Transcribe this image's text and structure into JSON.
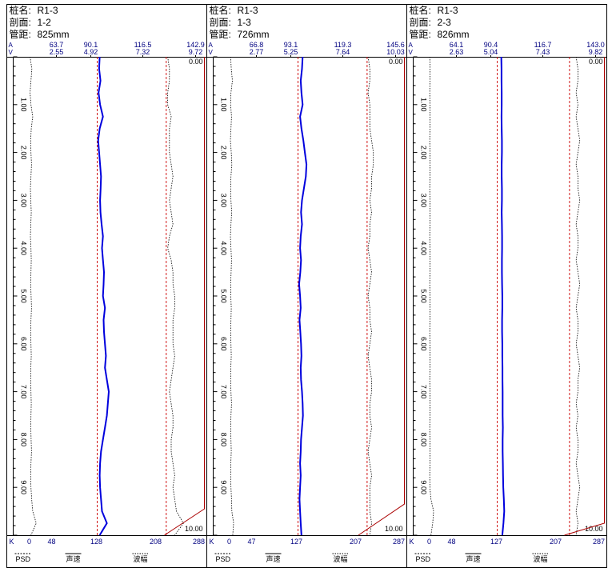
{
  "labels": {
    "pile": "桩名:",
    "section": "剖面:",
    "distance": "管距:",
    "amp_axis": "A",
    "vel_axis": "V",
    "k_axis": "K",
    "legend_psd": "PSD",
    "legend_velocity": "声速",
    "legend_amplitude": "波幅"
  },
  "colors": {
    "velocity": "#0000dd",
    "threshold": "#cc0000",
    "psd": "#aa0000",
    "amplitude": "#000000",
    "text": "#000000",
    "scale_text": "#000080"
  },
  "chart_data": [
    {
      "type": "line",
      "pile": "R1-3",
      "section": "1-2",
      "distance": "825mm",
      "amp_ticks": [
        "63.7",
        "90.1",
        "116.5",
        "142.9"
      ],
      "vel_ticks": [
        "2.55",
        "4.92",
        "7.32",
        "9.72"
      ],
      "k_ticks": [
        "0",
        "48",
        "128",
        "208",
        "288"
      ],
      "depth_ticks": [
        "1.00",
        "2.00",
        "3.00",
        "4.00",
        "5.00",
        "6.00",
        "7.00",
        "8.00",
        "9.00"
      ],
      "depth_top_label": "0.00",
      "depth_bottom_label": "10.00",
      "ylim": [
        0,
        10
      ],
      "velocity_threshold": 4.65,
      "amplitude_threshold": 126.2,
      "depth": [
        0,
        0.25,
        0.5,
        0.75,
        1,
        1.25,
        1.5,
        1.75,
        2,
        2.25,
        2.5,
        2.75,
        3,
        3.25,
        3.5,
        3.75,
        4,
        4.25,
        4.5,
        4.75,
        5,
        5.25,
        5.5,
        5.75,
        6,
        6.25,
        6.5,
        6.75,
        7,
        7.25,
        7.5,
        7.75,
        8,
        8.25,
        8.5,
        8.75,
        9,
        9.25,
        9.5,
        9.75,
        10
      ],
      "velocity": [
        4.78,
        4.75,
        4.82,
        4.72,
        4.8,
        4.95,
        4.78,
        4.7,
        4.75,
        4.8,
        4.85,
        4.83,
        4.8,
        4.82,
        4.88,
        4.95,
        4.9,
        4.95,
        5.0,
        4.98,
        4.95,
        5.05,
        4.98,
        5.0,
        5.05,
        5.1,
        5.05,
        5.15,
        5.25,
        5.2,
        5.15,
        5.05,
        4.95,
        4.85,
        4.8,
        4.78,
        4.8,
        4.85,
        4.9,
        5.15,
        4.78
      ],
      "amplitude": [
        127,
        128,
        128,
        127,
        127,
        129,
        128,
        128,
        128,
        129,
        130,
        129,
        128,
        129,
        130,
        128,
        127,
        129,
        130,
        130,
        131,
        131,
        130,
        130,
        130,
        131,
        130,
        129,
        128,
        129,
        130,
        130,
        129,
        129,
        130,
        131,
        130,
        131,
        132,
        136,
        131
      ],
      "psd_depth": [
        0,
        9.45,
        10
      ],
      "psd": [
        0,
        0,
        2.0
      ],
      "left_trace": [
        0.5,
        1.5,
        1.0,
        0.5,
        1.0,
        2.0,
        1.2,
        0.8,
        1.0,
        1.3,
        1.0,
        0.7,
        0.9,
        1.2,
        0.9,
        0.7,
        1.0,
        1.2,
        1.0,
        0.8,
        1.1,
        1.3,
        1.0,
        0.8,
        1.0,
        1.2,
        0.9,
        0.8,
        1.0,
        1.2,
        1.0,
        0.9,
        1.1,
        1.3,
        1.0,
        0.8,
        1.0,
        1.4,
        2.0,
        4.0,
        1.0
      ]
    },
    {
      "type": "line",
      "pile": "R1-3",
      "section": "1-3",
      "distance": "726mm",
      "amp_ticks": [
        "66.8",
        "93.1",
        "119.3",
        "145.6"
      ],
      "vel_ticks": [
        "2.77",
        "5.25",
        "7.64",
        "10.03"
      ],
      "k_ticks": [
        "0",
        "47",
        "127",
        "207",
        "287"
      ],
      "depth_ticks": [
        "1.00",
        "2.00",
        "3.00",
        "4.00",
        "5.00",
        "6.00",
        "7.00",
        "8.00",
        "9.00"
      ],
      "depth_top_label": "0.00",
      "depth_bottom_label": "10.00",
      "ylim": [
        0,
        10
      ],
      "velocity_threshold": 4.94,
      "amplitude_threshold": 129.5,
      "depth": [
        0,
        0.25,
        0.5,
        0.75,
        1,
        1.25,
        1.5,
        1.75,
        2,
        2.25,
        2.5,
        2.75,
        3,
        3.25,
        3.5,
        3.75,
        4,
        4.25,
        4.5,
        4.75,
        5,
        5.25,
        5.5,
        5.75,
        6,
        6.25,
        6.5,
        6.75,
        7,
        7.25,
        7.5,
        7.75,
        8,
        8.25,
        8.5,
        8.75,
        9,
        9.25,
        9.5,
        9.75,
        10
      ],
      "velocity": [
        5.18,
        5.15,
        5.08,
        5.12,
        5.18,
        5.05,
        5.12,
        5.22,
        5.3,
        5.38,
        5.35,
        5.25,
        5.15,
        5.1,
        5.15,
        5.08,
        5.05,
        5.1,
        5.06,
        5.0,
        5.05,
        5.08,
        5.02,
        5.06,
        5.1,
        5.12,
        5.08,
        5.1,
        5.15,
        5.18,
        5.2,
        5.15,
        5.1,
        5.08,
        5.05,
        5.08,
        5.05,
        5.02,
        5.05,
        5.08,
        5.12
      ],
      "amplitude": [
        130,
        131,
        131,
        130,
        131,
        131,
        131,
        132,
        133,
        133,
        132,
        132,
        131,
        132,
        131,
        131,
        130,
        131,
        132,
        131,
        130,
        131,
        131,
        132,
        131,
        130,
        131,
        132,
        132,
        131,
        131,
        132,
        131,
        130,
        131,
        132,
        131,
        131,
        131,
        132,
        131
      ],
      "psd_depth": [
        0,
        9.35,
        10
      ],
      "psd": [
        0,
        0,
        2.3
      ],
      "left_trace": [
        0.8,
        1.2,
        1.8,
        1.0,
        0.8,
        1.3,
        1.0,
        0.7,
        1.2,
        1.5,
        1.0,
        0.8,
        1.0,
        1.4,
        1.0,
        0.7,
        1.0,
        1.3,
        1.1,
        0.8,
        0.9,
        1.2,
        1.0,
        0.8,
        1.0,
        1.2,
        0.9,
        0.8,
        1.0,
        1.3,
        1.0,
        0.8,
        1.0,
        1.2,
        0.9,
        0.8,
        1.0,
        1.3,
        1.5,
        2.5,
        2.0
      ]
    },
    {
      "type": "line",
      "pile": "R1-3",
      "section": "2-3",
      "distance": "826mm",
      "amp_ticks": [
        "64.1",
        "90.4",
        "116.7",
        "143.0"
      ],
      "vel_ticks": [
        "2.63",
        "5.04",
        "7.43",
        "9.82"
      ],
      "k_ticks": [
        "0",
        "48",
        "127",
        "207",
        "287"
      ],
      "depth_ticks": [
        "1.00",
        "2.00",
        "3.00",
        "4.00",
        "5.00",
        "6.00",
        "7.00",
        "8.00",
        "9.00"
      ],
      "depth_top_label": "0.00",
      "depth_bottom_label": "10.00",
      "ylim": [
        0,
        10
      ],
      "velocity_threshold": 4.74,
      "amplitude_threshold": 128.2,
      "depth": [
        0,
        0.25,
        0.5,
        0.75,
        1,
        1.25,
        1.5,
        1.75,
        2,
        2.25,
        2.5,
        2.75,
        3,
        3.25,
        3.5,
        3.75,
        4,
        4.25,
        4.5,
        4.75,
        5,
        5.25,
        5.5,
        5.75,
        6,
        6.25,
        6.5,
        6.75,
        7,
        7.25,
        7.5,
        7.75,
        8,
        8.25,
        8.5,
        8.75,
        9,
        9.25,
        9.5,
        9.75,
        10
      ],
      "velocity": [
        4.95,
        4.96,
        4.96,
        4.97,
        4.97,
        4.96,
        4.97,
        4.98,
        4.98,
        4.97,
        4.97,
        4.98,
        4.98,
        4.97,
        4.98,
        4.99,
        4.99,
        4.98,
        4.98,
        4.99,
        5.0,
        5.0,
        4.99,
        4.99,
        5.0,
        5.0,
        5.01,
        5.01,
        5.02,
        5.02,
        5.02,
        5.03,
        5.02,
        5.02,
        5.03,
        5.04,
        5.05,
        5.08,
        5.1,
        5.06,
        5.0
      ],
      "amplitude": [
        132,
        133,
        133,
        132,
        133,
        132,
        133,
        134,
        133,
        132,
        133,
        133,
        134,
        133,
        132,
        133,
        133,
        132,
        133,
        134,
        133,
        132,
        133,
        133,
        132,
        133,
        134,
        133,
        133,
        132,
        133,
        132,
        133,
        133,
        132,
        133,
        134,
        133,
        132,
        133,
        132
      ],
      "psd_depth": [
        0,
        9.75,
        10
      ],
      "psd": [
        0,
        0,
        2.0
      ],
      "left_trace": [
        0.3,
        0.5,
        0.4,
        0.3,
        0.4,
        0.5,
        0.4,
        0.3,
        0.4,
        0.5,
        0.4,
        0.3,
        0.4,
        0.5,
        0.4,
        0.3,
        0.4,
        0.5,
        0.4,
        0.3,
        0.4,
        0.5,
        0.4,
        0.3,
        0.4,
        0.5,
        0.4,
        0.3,
        0.4,
        0.5,
        0.4,
        0.3,
        0.4,
        0.5,
        0.4,
        0.3,
        0.4,
        1.0,
        2.5,
        2.0,
        1.0
      ]
    }
  ]
}
